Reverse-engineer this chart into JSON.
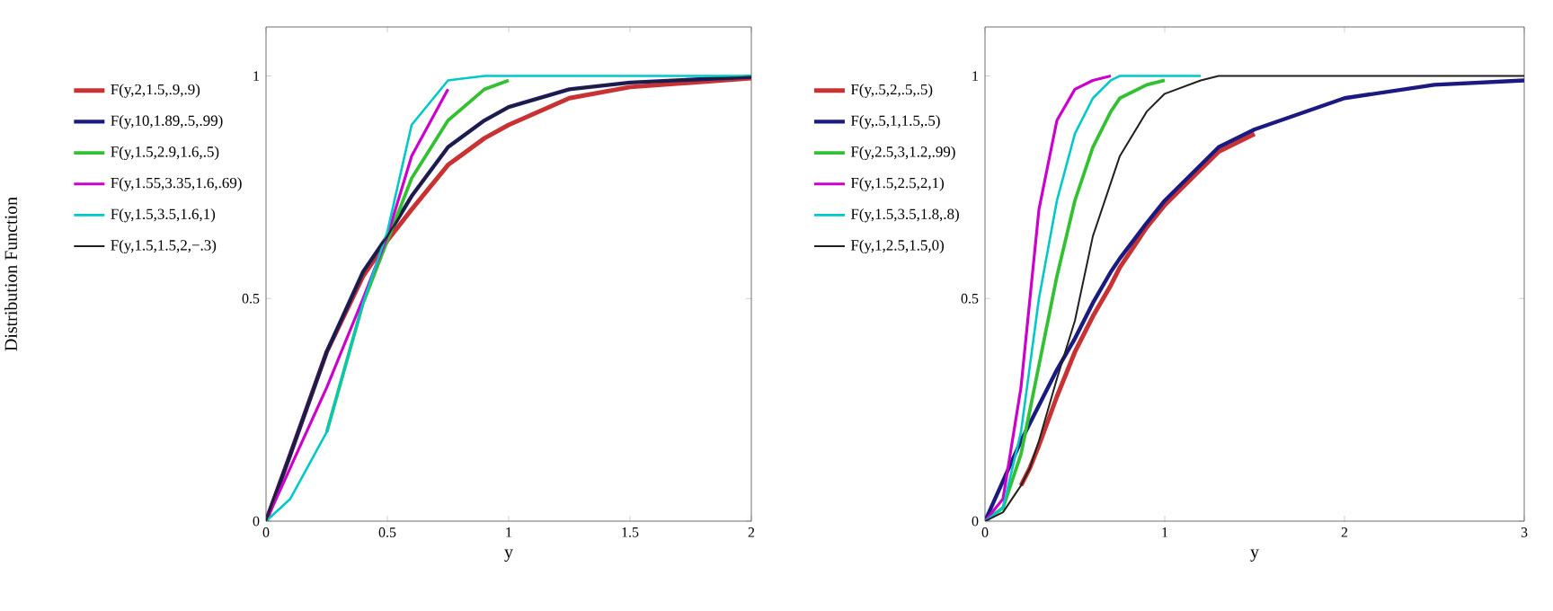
{
  "chart_data": [
    {
      "type": "line",
      "xlabel": "y",
      "ylabel": "Distribution Function",
      "xlim": [
        0,
        2
      ],
      "ylim": [
        0,
        1.11
      ],
      "xticks": [
        0,
        0.5,
        1,
        1.5,
        2
      ],
      "yticks": [
        0,
        0.5,
        1
      ],
      "legend": "left",
      "marker": "none",
      "line_style": "solid",
      "grid": false,
      "x": [
        0,
        0.1,
        0.25,
        0.4,
        0.5,
        0.6,
        0.75,
        0.9,
        1.0,
        1.25,
        1.5,
        2
      ],
      "series": [
        {
          "name": "F(y,2,1.5,.9,.9)",
          "color": "#c83232",
          "values": [
            0,
            0.15,
            0.38,
            0.55,
            0.63,
            0.7,
            0.8,
            0.86,
            0.89,
            0.95,
            0.975,
            0.995
          ]
        },
        {
          "name": "F(y,10,1.89,.5,.99)",
          "color": "#1a1a80",
          "values": [
            0,
            0.15,
            0.38,
            0.56,
            0.64,
            0.73,
            0.84,
            0.9,
            0.93,
            0.97,
            0.985,
            0.998
          ]
        },
        {
          "name": "F(y,1.5,2.9,1.6,.5)",
          "color": "#33c033",
          "values": [
            null,
            null,
            0.2,
            0.49,
            0.63,
            0.77,
            0.9,
            0.97,
            0.99,
            null,
            null,
            null
          ]
        },
        {
          "name": "F(y,1.55,3.35,1.6,.69)",
          "color": "#cc00cc",
          "values": [
            0,
            0.12,
            0.3,
            0.5,
            0.64,
            0.82,
            0.97,
            null,
            null,
            null,
            null,
            null
          ]
        },
        {
          "name": "F(y,1.5,3.5,1.6,1)",
          "color": "#00c8c8",
          "values": [
            0,
            0.05,
            0.2,
            0.49,
            0.65,
            0.89,
            0.99,
            1,
            1,
            1,
            1,
            1
          ]
        },
        {
          "name": "F(y,1.5,1.5,2,−.3)",
          "color": "#202020",
          "values": [
            0,
            0.15,
            0.38,
            0.56,
            0.64,
            0.73,
            0.84,
            0.9,
            0.93,
            0.97,
            0.985,
            0.998
          ]
        }
      ]
    },
    {
      "type": "line",
      "xlabel": "y",
      "xlim": [
        0,
        3
      ],
      "ylim": [
        0,
        1.11
      ],
      "xticks": [
        0,
        1,
        2,
        3
      ],
      "yticks": [
        0,
        0.5,
        1
      ],
      "legend": "left",
      "marker": "none",
      "line_style": "solid",
      "grid": false,
      "x": [
        0,
        0.1,
        0.2,
        0.25,
        0.3,
        0.4,
        0.5,
        0.6,
        0.7,
        0.75,
        0.9,
        1.0,
        1.2,
        1.3,
        1.5,
        2,
        2.5,
        3
      ],
      "series": [
        {
          "name": "F(y,.5,2,.5,.5)",
          "color": "#c83232",
          "values": [
            null,
            null,
            0.08,
            0.12,
            0.17,
            0.28,
            0.38,
            0.46,
            0.53,
            0.57,
            0.66,
            0.71,
            0.79,
            0.83,
            0.87,
            null,
            null,
            null
          ]
        },
        {
          "name": "F(y,.5,1,1.5,.5)",
          "color": "#1a1a80",
          "values": [
            0,
            0.09,
            0.18,
            0.22,
            0.26,
            0.34,
            0.41,
            0.49,
            0.56,
            0.59,
            0.67,
            0.72,
            0.8,
            0.84,
            0.88,
            0.95,
            0.98,
            0.99
          ]
        },
        {
          "name": "F(y,2.5,3,1.2,.99)",
          "color": "#33c033",
          "values": [
            0,
            0.03,
            0.15,
            0.25,
            0.35,
            0.55,
            0.72,
            0.84,
            0.92,
            0.95,
            0.98,
            0.99,
            null,
            null,
            null,
            null,
            null,
            null
          ]
        },
        {
          "name": "F(y,1.5,2.5,2,1)",
          "color": "#cc00cc",
          "values": [
            0,
            0.05,
            0.3,
            0.5,
            0.7,
            0.9,
            0.97,
            0.99,
            1,
            null,
            null,
            null,
            null,
            null,
            null,
            null,
            null,
            null
          ]
        },
        {
          "name": "F(y,1.5,3.5,1.8,.8)",
          "color": "#00c8c8",
          "values": [
            0,
            0.03,
            0.2,
            0.35,
            0.5,
            0.72,
            0.87,
            0.95,
            0.99,
            1,
            1,
            1,
            1,
            null,
            null,
            null,
            null,
            null
          ]
        },
        {
          "name": "F(y,1,2.5,1.5,0)",
          "color": "#202020",
          "values": [
            0,
            0.02,
            0.08,
            0.12,
            0.18,
            0.32,
            0.45,
            0.64,
            0.76,
            0.82,
            0.92,
            0.96,
            0.99,
            1,
            1,
            1,
            1,
            1
          ]
        }
      ]
    }
  ]
}
